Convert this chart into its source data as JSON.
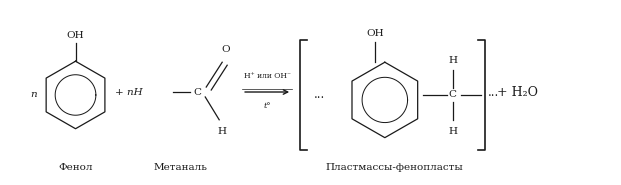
{
  "bg_color": "#ffffff",
  "line_color": "#1a1a1a",
  "label_fenol": "Фенол",
  "label_metanal": "Метаналь",
  "label_plastic": "Пластмассы-фенопласты",
  "condition_top": "H⁺ или OH⁻",
  "condition_bot": "t°",
  "plus_h2o": "+ H₂O",
  "figsize": [
    6.21,
    1.85
  ],
  "dpi": 100
}
